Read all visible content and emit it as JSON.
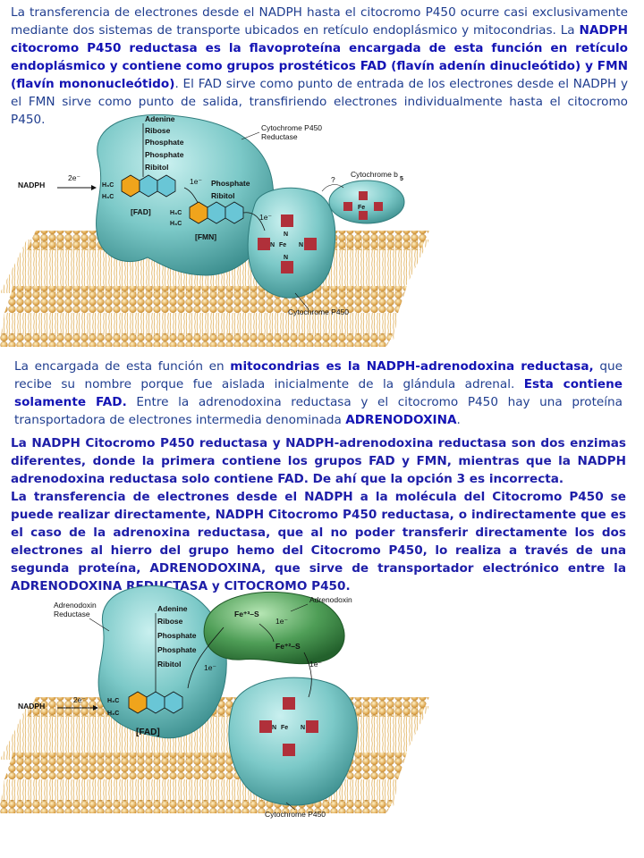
{
  "text": {
    "p1": [
      {
        "t": "La transferencia de electrones desde el NADPH hasta el citocromo P450 ocurre casi exclusivamente mediante dos sistemas de transporte ubicados en retículo endoplásmico y mitocondrias. La ",
        "b": false
      },
      {
        "t": "NADPH citocromo P450 reductasa es la flavoproteína encargada de esta función en retículo endoplásmico y contiene como grupos prostéticos FAD (flavín adenín dinucleótido) y FMN (flavín mononucleótido)",
        "b": true
      },
      {
        "t": ". El FAD sirve como punto de entrada de los electrones desde el NADPH y el FMN sirve como punto de salida, transfiriendo electrones individualmente hasta el citocromo P450.",
        "b": false
      }
    ],
    "p2": [
      {
        "t": "La encargada de esta función en ",
        "b": false
      },
      {
        "t": "mitocondrias es la NADPH-adrenodoxina reductasa,",
        "b": true
      },
      {
        "t": " que recibe su nombre porque fue aislada inicialmente de la glándula adrenal. ",
        "b": false
      },
      {
        "t": "Esta contiene solamente FAD.",
        "b": true
      },
      {
        "t": " Entre la adrenodoxina reductasa y el citocromo P450 hay una proteína transportadora de electrones intermedia denominada ",
        "b": false
      },
      {
        "t": "ADRENODOXINA",
        "b": true
      },
      {
        "t": ".",
        "b": false
      }
    ],
    "p3a": "La NADPH Citocromo P450 reductasa y NADPH-adrenodoxina reductasa son dos enzimas diferentes, donde la primera contiene los grupos FAD y FMN, mientras que la NADPH adrenodoxina reductasa solo contiene FAD. De ahí que la opción 3 es incorrecta.",
    "p3b": "La transferencia de electrones desde el NADPH a la molécula del Citocromo P450 se puede realizar directamente, NADPH Citocromo P450 reductasa, o indirectamente que es el caso de la adrenoxina reductasa, que al no poder transferir directamente los dos electrones al hierro del grupo hemo del Citocromo P450, lo realiza a través de una segunda proteína, ADRENODOXINA, que sirve de transportador electrónico entre la ADRENODOXINA REDUCTASA y CITOCROMO P450."
  },
  "fig1": {
    "nadph": "NADPH",
    "two_e": "2e⁻",
    "stack": [
      "Adenine",
      "Ribose",
      "Phosphate",
      "Phosphate",
      "Ribitol"
    ],
    "fad": "[FAD]",
    "fmn": "[FMN]",
    "fmn_stack": [
      "Phosphate",
      "Ribitol"
    ],
    "one_e": "1e⁻",
    "reductase_label": [
      "Cytochrome P450",
      "Reductase"
    ],
    "b5_label": "Cytochrome b",
    "b5_sub": "5",
    "question": "?",
    "p450_label": "Cytochrome P450",
    "heme_c": "C",
    "heme_n": "N",
    "heme_fe": "Fe",
    "h3c": "H₃C"
  },
  "fig2": {
    "nadph": "NADPH",
    "two_e": "2e⁻",
    "reductase_label": [
      "Adrenodoxin",
      "Reductase"
    ],
    "stack": [
      "Adenine",
      "Ribose",
      "Phosphate",
      "Phosphate",
      "Ribitol"
    ],
    "fad": "[FAD]",
    "adrenodoxin_label": "Adrenodoxin",
    "fe3": "Fe⁺³–S",
    "fe2": "Fe⁺²–S",
    "one_e": "1e⁻",
    "p450_label": "Cytochrome P450",
    "h3c": "H₃C"
  },
  "colors": {
    "text": "#1f3d8f",
    "bold": "#1414b4",
    "protein": "#5fb8b8",
    "adrenodoxin": "#3f8f4a",
    "lipid": "#e8b45a",
    "heme": "#b0303a"
  }
}
